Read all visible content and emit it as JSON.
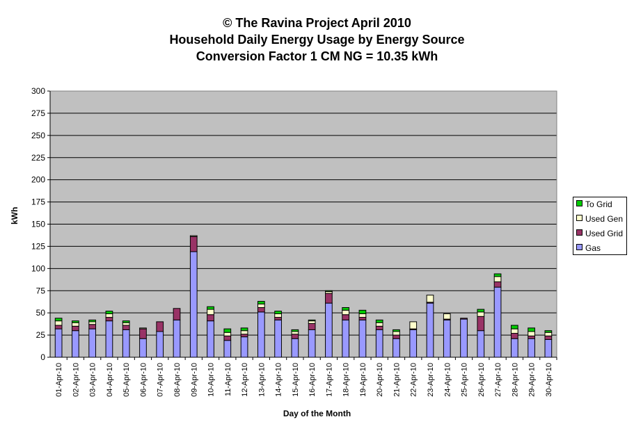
{
  "chart_data": {
    "type": "bar",
    "stacked": true,
    "title": [
      "© The Ravina Project April 2010",
      "Household Daily Energy Usage by Energy Source",
      "Conversion Factor 1 CM NG = 10.35 kWh"
    ],
    "xlabel": "Day of the Month",
    "ylabel": "kWh",
    "ylim": [
      0,
      300
    ],
    "yticks": [
      0,
      25,
      50,
      75,
      100,
      125,
      150,
      175,
      200,
      225,
      250,
      275,
      300
    ],
    "grid": true,
    "legend_position": "right",
    "categories": [
      "01-Apr-10",
      "02-Apr-10",
      "03-Apr-10",
      "04-Apr-10",
      "05-Apr-10",
      "06-Apr-10",
      "07-Apr-10",
      "08-Apr-10",
      "09-Apr-10",
      "10-Apr-10",
      "11-Apr-10",
      "12-Apr-10",
      "13-Apr-10",
      "14-Apr-10",
      "15-Apr-10",
      "16-Apr-10",
      "17-Apr-10",
      "18-Apr-10",
      "19-Apr-10",
      "20-Apr-10",
      "21-Apr-10",
      "22-Apr-10",
      "23-Apr-10",
      "24-Apr-10",
      "25-Apr-10",
      "26-Apr-10",
      "27-Apr-10",
      "28-Apr-10",
      "29-Apr-10",
      "30-Apr-10"
    ],
    "series": [
      {
        "name": "Gas",
        "color": "#9999ff",
        "values": [
          32,
          30,
          32,
          41,
          31,
          21,
          29,
          42,
          119,
          41,
          19,
          23,
          51,
          42,
          21,
          31,
          61,
          42,
          42,
          31,
          21,
          31,
          61,
          42,
          43,
          30,
          79,
          21,
          21,
          20
        ]
      },
      {
        "name": "Used Grid",
        "color": "#993366",
        "values": [
          4,
          5,
          5,
          4,
          5,
          11,
          11,
          13,
          17,
          7,
          5,
          3,
          5,
          3,
          5,
          7,
          11,
          6,
          3,
          4,
          4,
          1,
          1,
          1,
          1,
          16,
          6,
          6,
          3,
          4
        ]
      },
      {
        "name": "Used Gen",
        "color": "#ffffcc",
        "values": [
          5,
          4,
          3,
          4,
          3,
          1,
          0,
          0,
          1,
          6,
          4,
          4,
          4,
          4,
          3,
          3,
          2,
          5,
          4,
          4,
          4,
          8,
          8,
          6,
          0,
          5,
          6,
          5,
          5,
          4
        ]
      },
      {
        "name": "To Grid",
        "color": "#00cc00",
        "values": [
          3,
          2,
          2,
          3,
          2,
          0,
          0,
          0,
          0,
          3,
          4,
          3,
          3,
          3,
          2,
          1,
          1,
          3,
          4,
          3,
          2,
          0,
          0,
          0,
          0,
          3,
          3,
          4,
          4,
          2
        ]
      }
    ],
    "legend_order": [
      "To Grid",
      "Used Gen",
      "Used Grid",
      "Gas"
    ]
  },
  "colors": {
    "plot_background": "#c0c0c0",
    "gridline": "#000000"
  }
}
